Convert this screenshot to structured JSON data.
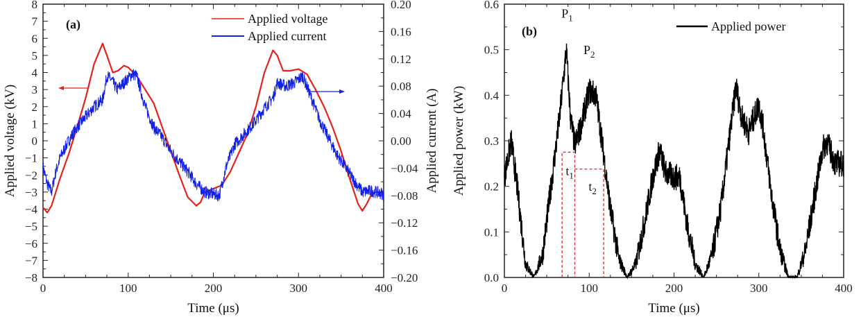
{
  "chart_data": [
    {
      "type": "line",
      "panel_label": "(a)",
      "xlabel": "Time (μs)",
      "ylabel": "Applied voltage (kV)",
      "ylabel_right": "Applied current (A)",
      "xlim": [
        0,
        400
      ],
      "ylim": [
        -8,
        8
      ],
      "ylim_right": [
        -0.2,
        0.2
      ],
      "xticks": [
        "0",
        "100",
        "200",
        "300",
        "400"
      ],
      "yticks": [
        "-8",
        "-7",
        "-6",
        "-5",
        "-4",
        "-3",
        "-2",
        "-1",
        "0",
        "1",
        "2",
        "3",
        "4",
        "5",
        "6",
        "7",
        "8"
      ],
      "yticks_right": [
        "-0.20",
        "-0.16",
        "-0.12",
        "-0.08",
        "-0.04",
        "0.00",
        "0.04",
        "0.08",
        "0.12",
        "0.16",
        "0.20"
      ],
      "legend_position": "top-right",
      "series": [
        {
          "name": "Applied voltage",
          "color": "#e8201c",
          "axis": "left",
          "noise": 0,
          "x": [
            0,
            5,
            10,
            20,
            30,
            40,
            50,
            60,
            70,
            75,
            82,
            88,
            95,
            100,
            110,
            120,
            130,
            140,
            150,
            160,
            170,
            180,
            185,
            190,
            200,
            210,
            220,
            230,
            240,
            250,
            260,
            270,
            275,
            282,
            290,
            300,
            310,
            320,
            330,
            340,
            350,
            360,
            370,
            375,
            380,
            385,
            390,
            400
          ],
          "y": [
            -3.9,
            -4.2,
            -3.8,
            -2.2,
            -0.8,
            0.8,
            2.5,
            4.5,
            5.7,
            5.0,
            4.0,
            4.1,
            4.4,
            4.3,
            3.8,
            3.0,
            2.2,
            0.8,
            -0.6,
            -2.0,
            -3.3,
            -3.8,
            -3.6,
            -3.0,
            -2.8,
            -2.6,
            -1.8,
            -0.7,
            0.4,
            2.0,
            4.0,
            5.3,
            5.0,
            4.1,
            4.1,
            4.2,
            3.9,
            3.0,
            2.0,
            0.8,
            -0.6,
            -2.2,
            -3.7,
            -4.1,
            -3.7,
            -3.2,
            -3.0,
            -3.0
          ]
        },
        {
          "name": "Applied current",
          "color": "#1020e8",
          "axis": "right",
          "noise": 0.009,
          "x": [
            0,
            5,
            10,
            15,
            20,
            30,
            40,
            50,
            60,
            70,
            75,
            80,
            87,
            95,
            105,
            110,
            120,
            130,
            140,
            150,
            160,
            170,
            180,
            190,
            200,
            207,
            215,
            225,
            240,
            250,
            260,
            270,
            275,
            285,
            295,
            305,
            315,
            325,
            335,
            345,
            355,
            365,
            375,
            385,
            400
          ],
          "y": [
            -0.038,
            -0.063,
            -0.075,
            -0.045,
            -0.025,
            0.0,
            0.02,
            0.035,
            0.05,
            0.06,
            0.095,
            0.09,
            0.075,
            0.085,
            0.098,
            0.095,
            0.05,
            0.02,
            0.005,
            -0.015,
            -0.03,
            -0.045,
            -0.063,
            -0.075,
            -0.078,
            -0.08,
            -0.038,
            -0.005,
            0.015,
            0.03,
            0.048,
            0.063,
            0.085,
            0.08,
            0.085,
            0.095,
            0.063,
            0.03,
            0.005,
            -0.02,
            -0.038,
            -0.058,
            -0.075,
            -0.073,
            -0.078
          ]
        }
      ],
      "annotations": {
        "arrow_left": "voltage → left axis",
        "arrow_right": "current → right axis"
      }
    },
    {
      "type": "line",
      "panel_label": "(b)",
      "xlabel": "Time (μs)",
      "ylabel": "Applied power (kW)",
      "xlim": [
        0,
        400
      ],
      "ylim": [
        0,
        0.6
      ],
      "xticks": [
        "0",
        "100",
        "200",
        "300",
        "400"
      ],
      "yticks": [
        "0.0",
        "0.1",
        "0.2",
        "0.3",
        "0.4",
        "0.5",
        "0.6"
      ],
      "legend_position": "top-right",
      "series": [
        {
          "name": "Applied power",
          "color": "#000000",
          "noise": 0.03,
          "x": [
            0,
            8,
            15,
            25,
            35,
            45,
            55,
            65,
            73,
            78,
            83,
            90,
            100,
            108,
            115,
            125,
            135,
            145,
            155,
            165,
            175,
            183,
            190,
            200,
            207,
            215,
            225,
            235,
            245,
            255,
            265,
            273,
            280,
            288,
            300,
            305,
            315,
            325,
            335,
            345,
            355,
            365,
            375,
            380,
            390,
            400
          ],
          "y": [
            0.22,
            0.3,
            0.2,
            0.03,
            0,
            0.05,
            0.2,
            0.35,
            0.5,
            0.35,
            0.29,
            0.33,
            0.41,
            0.4,
            0.3,
            0.15,
            0.04,
            0,
            0.03,
            0.12,
            0.22,
            0.28,
            0.23,
            0.22,
            0.22,
            0.12,
            0.03,
            0,
            0.05,
            0.15,
            0.3,
            0.42,
            0.35,
            0.32,
            0.38,
            0.33,
            0.18,
            0.06,
            0,
            0,
            0.06,
            0.17,
            0.28,
            0.3,
            0.25,
            0.25
          ]
        }
      ],
      "annotations": [
        {
          "text": "P",
          "sub": "1",
          "x": 74,
          "y": 0.57
        },
        {
          "text": "P",
          "sub": "2",
          "x": 100,
          "y": 0.49
        },
        {
          "text": "t",
          "sub": "1",
          "x": 77,
          "y": 0.225
        },
        {
          "text": "t",
          "sub": "2",
          "x": 104,
          "y": 0.19
        }
      ],
      "guides": {
        "color": "#e8201c",
        "t1": [
          68,
          83
        ],
        "t2": [
          83,
          117
        ],
        "t1_level": 0.275,
        "t2_level": 0.238
      }
    }
  ]
}
